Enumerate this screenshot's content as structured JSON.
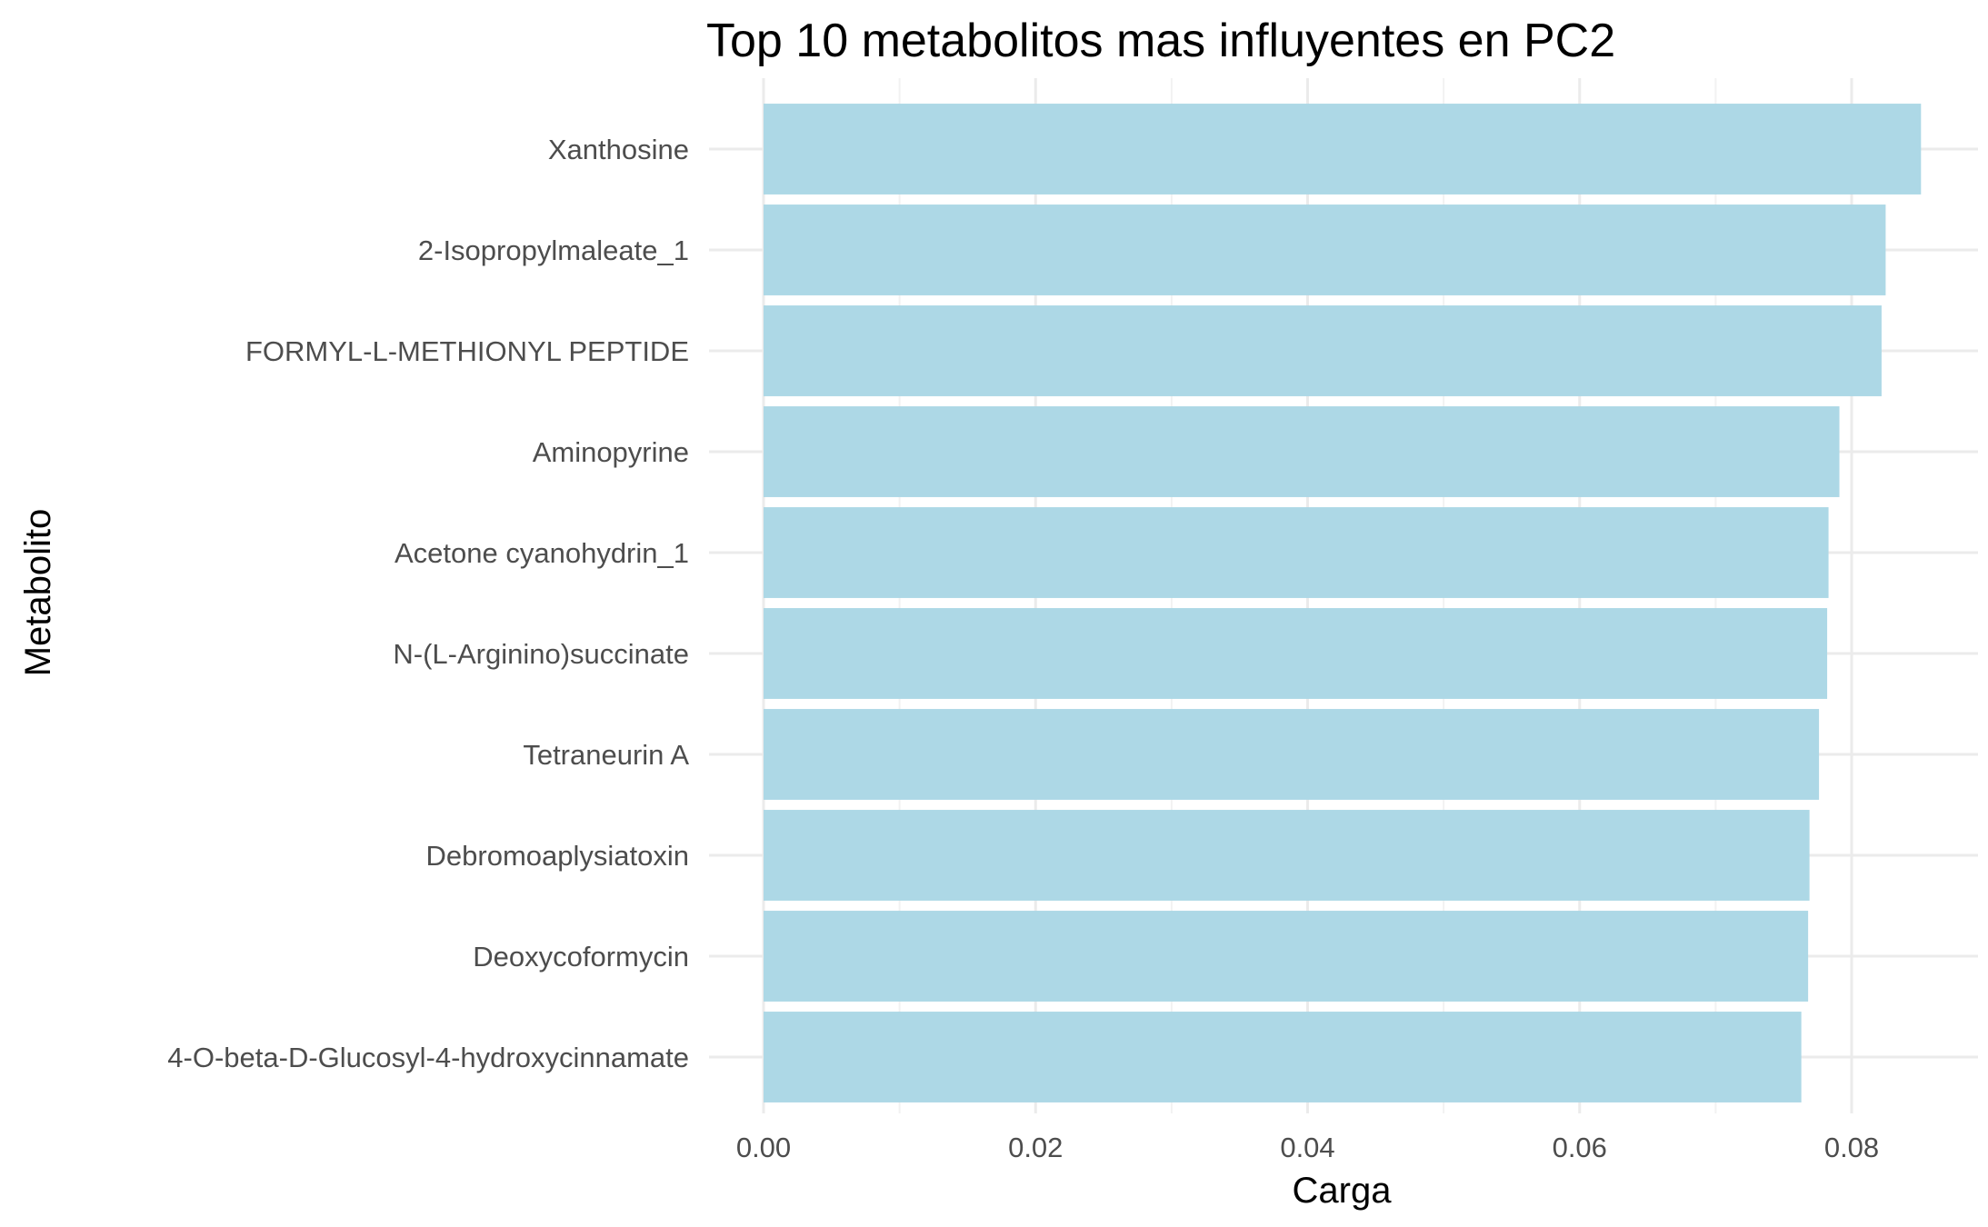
{
  "chart_data": {
    "type": "bar",
    "orientation": "horizontal",
    "title": "Top 10 metabolitos mas influyentes en PC2",
    "xlabel": "Carga",
    "ylabel": "Metabolito",
    "categories": [
      "Xanthosine",
      "2-Isopropylmaleate_1",
      "FORMYL-L-METHIONYL PEPTIDE",
      "Aminopyrine",
      "Acetone cyanohydrin_1",
      "N-(L-Arginino)succinate",
      "Tetraneurin A",
      "Debromoaplysiatoxin",
      "Deoxycoformycin",
      "4-O-beta-D-Glucosyl-4-hydroxycinnamate"
    ],
    "values": [
      0.0851,
      0.0825,
      0.0822,
      0.0791,
      0.0783,
      0.0782,
      0.0776,
      0.0769,
      0.0768,
      0.0763
    ],
    "xlim": [
      0.0,
      0.0892
    ],
    "x_ticks": [
      0.0,
      0.02,
      0.04,
      0.06,
      0.08
    ],
    "x_tick_labels": [
      "0.00",
      "0.02",
      "0.04",
      "0.06",
      "0.08"
    ],
    "grid": true,
    "legend": "none",
    "bar_color": "#add8e6"
  }
}
